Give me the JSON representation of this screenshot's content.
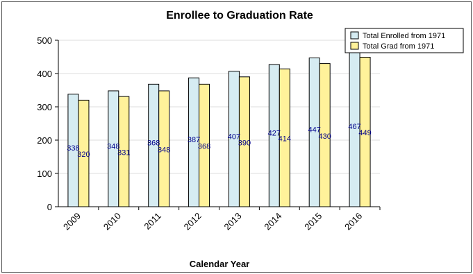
{
  "chart_data": {
    "type": "bar",
    "title": "Enrollee to Graduation Rate",
    "xlabel": "Calendar Year",
    "ylabel": "",
    "ylim": [
      0,
      500
    ],
    "yticks": [
      0,
      100,
      200,
      300,
      400,
      500
    ],
    "grid": true,
    "legend": "top-right",
    "categories": [
      "2009",
      "2010",
      "2011",
      "2012",
      "2013",
      "2014",
      "2015",
      "2016"
    ],
    "series": [
      {
        "name": "Total Enrolled from 1971",
        "color": "#d6ecf2",
        "values": [
          338,
          348,
          368,
          387,
          407,
          427,
          447,
          467
        ]
      },
      {
        "name": "Total Grad from 1971",
        "color": "#fff29a",
        "values": [
          320,
          331,
          348,
          368,
          390,
          414,
          430,
          449
        ]
      }
    ]
  }
}
